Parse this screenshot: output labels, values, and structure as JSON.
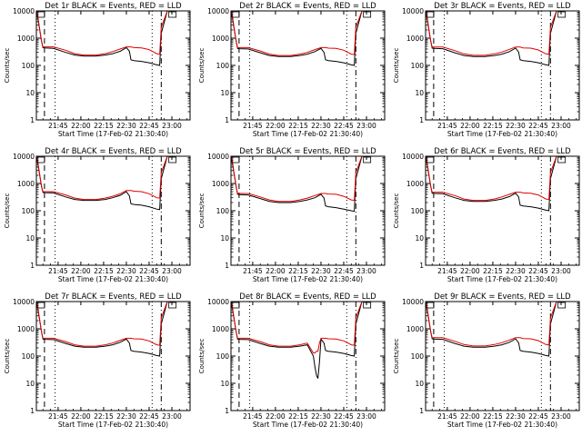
{
  "figure": {
    "xlabel": "Start Time (17-Feb-02 21:30:40)",
    "ylabel": "Counts/sec",
    "x_tick_labels": [
      "21:45",
      "22:00",
      "22:15",
      "22:30",
      "22:45",
      "23:00"
    ],
    "y_tick_labels": [
      "1",
      "10",
      "100",
      "1000",
      "10000"
    ],
    "colors": {
      "events": "#000000",
      "lld": "#e00000",
      "axes": "#000000",
      "background": "#ffffff"
    }
  },
  "chart_data": [
    {
      "type": "line",
      "title": "Det 1r BLACK = Events, RED = LLD",
      "xlabel": "Start Time (17-Feb-02 21:30:40)",
      "ylabel": "Counts/sec",
      "xlim": [
        "21:30:40",
        "23:12"
      ],
      "ylim": [
        1,
        10000
      ],
      "yscale": "log",
      "x": [
        "21:31",
        "21:32",
        "21:34",
        "21:35",
        "21:36",
        "21:42",
        "21:50",
        "21:56",
        "22:02",
        "22:10",
        "22:16",
        "22:21",
        "22:26",
        "22:30",
        "22:32",
        "22:33",
        "22:35",
        "22:40",
        "22:45",
        "22:50",
        "22:52",
        "22:53",
        "22:57",
        "23:00"
      ],
      "series": [
        {
          "name": "Events",
          "values": [
            10000,
            4000,
            800,
            450,
            440,
            420,
            300,
            240,
            220,
            220,
            240,
            270,
            330,
            450,
            330,
            160,
            150,
            140,
            125,
            105,
            100,
            1500,
            10000,
            10000
          ]
        },
        {
          "name": "LLD",
          "values": [
            10000,
            4500,
            800,
            480,
            480,
            480,
            360,
            270,
            240,
            240,
            270,
            320,
            400,
            480,
            480,
            480,
            450,
            440,
            380,
            270,
            260,
            2500,
            10000,
            10000
          ]
        }
      ],
      "vertical_lines": [
        "21:36",
        "21:43",
        "22:47",
        "22:53"
      ]
    },
    {
      "type": "line",
      "title": "Det 2r BLACK = Events, RED = LLD",
      "xlabel": "Start Time (17-Feb-02 21:30:40)",
      "ylabel": "Counts/sec",
      "xlim": [
        "21:30:40",
        "23:12"
      ],
      "ylim": [
        1,
        10000
      ],
      "yscale": "log",
      "x": [
        "21:31",
        "21:32",
        "21:34",
        "21:35",
        "21:36",
        "21:42",
        "21:50",
        "21:56",
        "22:02",
        "22:10",
        "22:16",
        "22:21",
        "22:26",
        "22:30",
        "22:32",
        "22:33",
        "22:35",
        "22:40",
        "22:45",
        "22:50",
        "22:52",
        "22:53",
        "22:57",
        "23:00"
      ],
      "series": [
        {
          "name": "Events",
          "values": [
            10000,
            4000,
            800,
            420,
            410,
            400,
            290,
            230,
            210,
            210,
            230,
            260,
            320,
            420,
            300,
            160,
            150,
            140,
            125,
            105,
            100,
            1500,
            10000,
            10000
          ]
        },
        {
          "name": "LLD",
          "values": [
            10000,
            4500,
            800,
            450,
            450,
            450,
            340,
            260,
            230,
            230,
            260,
            300,
            380,
            450,
            450,
            450,
            430,
            420,
            360,
            260,
            250,
            2500,
            10000,
            10000
          ]
        }
      ],
      "vertical_lines": [
        "21:36",
        "21:43",
        "22:47",
        "22:53"
      ]
    },
    {
      "type": "line",
      "title": "Det 3r BLACK = Events, RED = LLD",
      "xlabel": "Start Time (17-Feb-02 21:30:40)",
      "ylabel": "Counts/sec",
      "xlim": [
        "21:30:40",
        "23:12"
      ],
      "ylim": [
        1,
        10000
      ],
      "yscale": "log",
      "x": [
        "21:31",
        "21:32",
        "21:34",
        "21:35",
        "21:36",
        "21:42",
        "21:50",
        "21:56",
        "22:02",
        "22:10",
        "22:16",
        "22:21",
        "22:26",
        "22:30",
        "22:32",
        "22:33",
        "22:35",
        "22:40",
        "22:45",
        "22:50",
        "22:52",
        "22:53",
        "22:57",
        "23:00"
      ],
      "series": [
        {
          "name": "Events",
          "values": [
            10000,
            4000,
            800,
            430,
            420,
            410,
            290,
            230,
            210,
            210,
            230,
            260,
            320,
            430,
            310,
            160,
            150,
            140,
            125,
            105,
            100,
            1500,
            10000,
            10000
          ]
        },
        {
          "name": "LLD",
          "values": [
            10000,
            4500,
            800,
            470,
            470,
            470,
            350,
            265,
            235,
            235,
            265,
            310,
            390,
            470,
            470,
            470,
            440,
            430,
            370,
            265,
            255,
            2500,
            10000,
            10000
          ]
        }
      ],
      "vertical_lines": [
        "21:36",
        "21:43",
        "22:47",
        "22:53"
      ]
    },
    {
      "type": "line",
      "title": "Det 4r BLACK = Events, RED = LLD",
      "xlabel": "Start Time (17-Feb-02 21:30:40)",
      "ylabel": "Counts/sec",
      "xlim": [
        "21:30:40",
        "23:12"
      ],
      "ylim": [
        1,
        10000
      ],
      "yscale": "log",
      "x": [
        "21:31",
        "21:32",
        "21:34",
        "21:35",
        "21:36",
        "21:42",
        "21:50",
        "21:56",
        "22:02",
        "22:10",
        "22:16",
        "22:21",
        "22:26",
        "22:30",
        "22:32",
        "22:33",
        "22:35",
        "22:40",
        "22:45",
        "22:50",
        "22:52",
        "22:53",
        "22:57",
        "23:00"
      ],
      "series": [
        {
          "name": "Events",
          "values": [
            10000,
            4000,
            800,
            470,
            460,
            450,
            320,
            260,
            240,
            240,
            260,
            300,
            370,
            500,
            350,
            180,
            170,
            160,
            140,
            115,
            110,
            1500,
            10000,
            10000
          ]
        },
        {
          "name": "LLD",
          "values": [
            10000,
            4500,
            800,
            500,
            500,
            500,
            380,
            290,
            260,
            260,
            290,
            340,
            420,
            550,
            550,
            550,
            520,
            500,
            420,
            300,
            290,
            2500,
            10000,
            10000
          ]
        }
      ],
      "vertical_lines": [
        "21:36",
        "21:43",
        "22:47",
        "22:53"
      ]
    },
    {
      "type": "line",
      "title": "Det 5r BLACK = Events, RED = LLD",
      "xlabel": "Start Time (17-Feb-02 21:30:40)",
      "ylabel": "Counts/sec",
      "xlim": [
        "21:30:40",
        "23:12"
      ],
      "ylim": [
        1,
        10000
      ],
      "yscale": "log",
      "x": [
        "21:31",
        "21:32",
        "21:34",
        "21:35",
        "21:36",
        "21:42",
        "21:50",
        "21:56",
        "22:02",
        "22:10",
        "22:16",
        "22:21",
        "22:26",
        "22:30",
        "22:32",
        "22:33",
        "22:35",
        "22:40",
        "22:45",
        "22:50",
        "22:52",
        "22:53",
        "22:57",
        "23:00"
      ],
      "series": [
        {
          "name": "Events",
          "values": [
            10000,
            4000,
            800,
            400,
            390,
            380,
            280,
            220,
            200,
            200,
            220,
            250,
            300,
            400,
            290,
            150,
            140,
            130,
            115,
            100,
            95,
            1500,
            10000,
            10000
          ]
        },
        {
          "name": "LLD",
          "values": [
            10000,
            4500,
            800,
            430,
            430,
            430,
            320,
            250,
            220,
            220,
            250,
            290,
            360,
            430,
            430,
            430,
            410,
            400,
            340,
            250,
            240,
            2500,
            10000,
            10000
          ]
        }
      ],
      "vertical_lines": [
        "21:36",
        "21:43",
        "22:47",
        "22:53"
      ]
    },
    {
      "type": "line",
      "title": "Det 6r BLACK = Events, RED = LLD",
      "xlabel": "Start Time (17-Feb-02 21:30:40)",
      "ylabel": "Counts/sec",
      "xlim": [
        "21:30:40",
        "23:12"
      ],
      "ylim": [
        1,
        10000
      ],
      "yscale": "log",
      "x": [
        "21:31",
        "21:32",
        "21:34",
        "21:35",
        "21:36",
        "21:42",
        "21:50",
        "21:56",
        "22:02",
        "22:10",
        "22:16",
        "22:21",
        "22:26",
        "22:30",
        "22:32",
        "22:33",
        "22:35",
        "22:40",
        "22:45",
        "22:50",
        "22:52",
        "22:53",
        "22:57",
        "23:00"
      ],
      "series": [
        {
          "name": "Events",
          "values": [
            10000,
            4000,
            800,
            440,
            430,
            420,
            300,
            240,
            220,
            220,
            240,
            270,
            330,
            440,
            320,
            160,
            150,
            140,
            125,
            105,
            100,
            1500,
            10000,
            10000
          ]
        },
        {
          "name": "LLD",
          "values": [
            10000,
            4500,
            800,
            480,
            480,
            480,
            360,
            270,
            240,
            240,
            270,
            320,
            400,
            480,
            480,
            480,
            450,
            440,
            380,
            270,
            260,
            2500,
            10000,
            10000
          ]
        }
      ],
      "vertical_lines": [
        "21:36",
        "21:43",
        "22:47",
        "22:53"
      ]
    },
    {
      "type": "line",
      "title": "Det 7r BLACK = Events, RED = LLD",
      "xlabel": "Start Time (17-Feb-02 21:30:40)",
      "ylabel": "Counts/sec",
      "xlim": [
        "21:30:40",
        "23:12"
      ],
      "ylim": [
        1,
        10000
      ],
      "yscale": "log",
      "x": [
        "21:31",
        "21:32",
        "21:34",
        "21:35",
        "21:36",
        "21:42",
        "21:50",
        "21:56",
        "22:02",
        "22:10",
        "22:16",
        "22:21",
        "22:26",
        "22:30",
        "22:32",
        "22:33",
        "22:35",
        "22:40",
        "22:45",
        "22:50",
        "22:52",
        "22:53",
        "22:57",
        "23:00"
      ],
      "series": [
        {
          "name": "Events",
          "values": [
            10000,
            4000,
            800,
            420,
            410,
            400,
            290,
            230,
            210,
            210,
            230,
            260,
            320,
            420,
            300,
            160,
            150,
            140,
            125,
            105,
            100,
            1500,
            10000,
            10000
          ]
        },
        {
          "name": "LLD",
          "values": [
            10000,
            4500,
            800,
            450,
            450,
            450,
            340,
            260,
            230,
            230,
            260,
            300,
            380,
            450,
            450,
            450,
            430,
            420,
            360,
            260,
            250,
            2500,
            10000,
            10000
          ]
        }
      ],
      "vertical_lines": [
        "21:36",
        "21:43",
        "22:47",
        "22:53"
      ]
    },
    {
      "type": "line",
      "title": "Det 8r BLACK = Events, RED = LLD",
      "xlabel": "Start Time (17-Feb-02 21:30:40)",
      "ylabel": "Counts/sec",
      "xlim": [
        "21:30:40",
        "23:12"
      ],
      "ylim": [
        1,
        10000
      ],
      "yscale": "log",
      "x": [
        "21:31",
        "21:32",
        "21:34",
        "21:35",
        "21:36",
        "21:42",
        "21:50",
        "21:56",
        "22:02",
        "22:10",
        "22:16",
        "22:21",
        "22:25",
        "22:26",
        "22:27",
        "22:28",
        "22:29",
        "22:30",
        "22:32",
        "22:33",
        "22:35",
        "22:40",
        "22:45",
        "22:50",
        "22:52",
        "22:53",
        "22:57",
        "23:00"
      ],
      "series": [
        {
          "name": "Events",
          "values": [
            10000,
            4000,
            800,
            420,
            410,
            400,
            290,
            230,
            210,
            210,
            230,
            260,
            100,
            40,
            20,
            15,
            60,
            420,
            300,
            160,
            150,
            140,
            125,
            105,
            100,
            1500,
            10000,
            10000
          ]
        },
        {
          "name": "LLD",
          "values": [
            10000,
            4500,
            800,
            450,
            450,
            450,
            340,
            260,
            230,
            230,
            260,
            300,
            130,
            130,
            150,
            150,
            300,
            450,
            450,
            450,
            430,
            420,
            360,
            260,
            250,
            2500,
            10000,
            10000
          ]
        }
      ],
      "vertical_lines": [
        "21:36",
        "21:43",
        "22:47",
        "22:53"
      ]
    },
    {
      "type": "line",
      "title": "Det 9r BLACK = Events, RED = LLD",
      "xlabel": "Start Time (17-Feb-02 21:30:40)",
      "ylabel": "Counts/sec",
      "xlim": [
        "21:30:40",
        "23:12"
      ],
      "ylim": [
        1,
        10000
      ],
      "yscale": "log",
      "x": [
        "21:31",
        "21:32",
        "21:34",
        "21:35",
        "21:36",
        "21:42",
        "21:50",
        "21:56",
        "22:02",
        "22:10",
        "22:16",
        "22:21",
        "22:26",
        "22:30",
        "22:32",
        "22:33",
        "22:35",
        "22:40",
        "22:45",
        "22:50",
        "22:52",
        "22:53",
        "22:57",
        "23:00"
      ],
      "series": [
        {
          "name": "Events",
          "values": [
            10000,
            4000,
            800,
            430,
            420,
            410,
            290,
            230,
            210,
            210,
            230,
            260,
            320,
            430,
            310,
            160,
            150,
            140,
            125,
            105,
            100,
            1500,
            10000,
            10000
          ]
        },
        {
          "name": "LLD",
          "values": [
            10000,
            4500,
            800,
            470,
            470,
            470,
            350,
            265,
            235,
            235,
            265,
            310,
            390,
            470,
            470,
            470,
            440,
            430,
            370,
            265,
            255,
            2500,
            10000,
            10000
          ]
        }
      ],
      "vertical_lines": [
        "21:36",
        "21:43",
        "22:47",
        "22:53"
      ]
    }
  ]
}
